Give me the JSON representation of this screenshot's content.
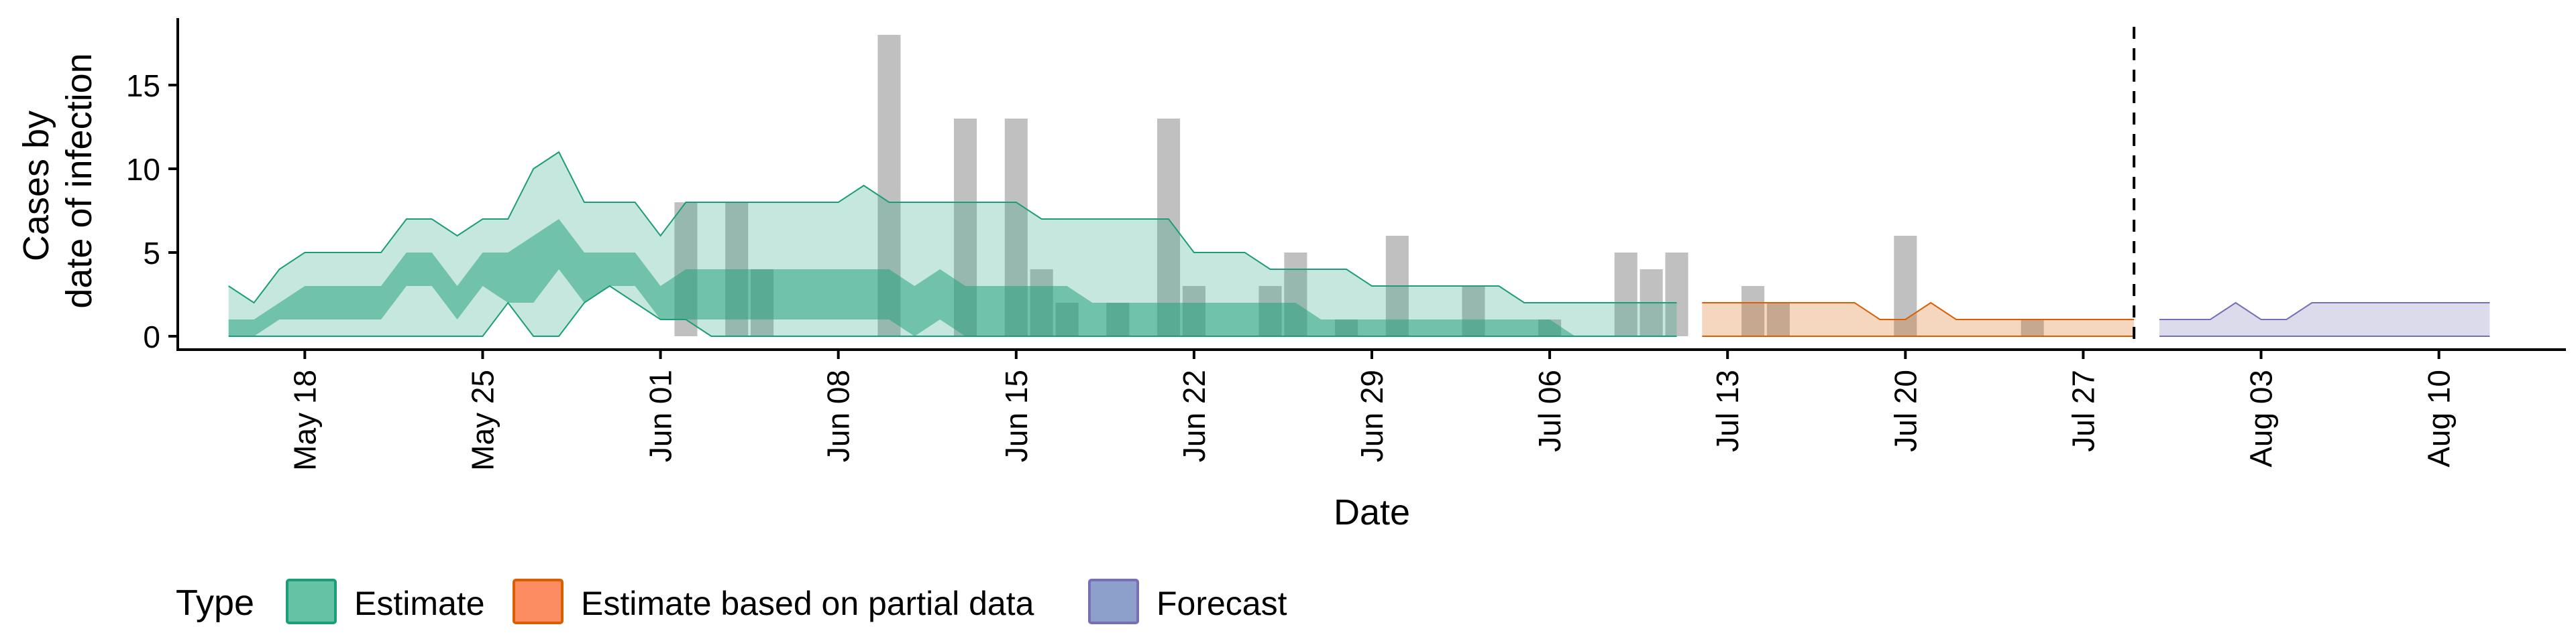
{
  "chart_data": {
    "type": "area",
    "xlabel": "Date",
    "ylabel": [
      "Cases by",
      "date of infection"
    ],
    "x_range": [
      "2020-05-13",
      "2020-08-15"
    ],
    "ylim": [
      -0.8,
      19
    ],
    "y_ticks": [
      0,
      5,
      10,
      15
    ],
    "x_ticks": [
      {
        "date": "2020-05-18",
        "label": "May 18"
      },
      {
        "date": "2020-05-25",
        "label": "May 25"
      },
      {
        "date": "2020-06-01",
        "label": "Jun 01"
      },
      {
        "date": "2020-06-08",
        "label": "Jun 08"
      },
      {
        "date": "2020-06-15",
        "label": "Jun 15"
      },
      {
        "date": "2020-06-22",
        "label": "Jun 22"
      },
      {
        "date": "2020-06-29",
        "label": "Jun 29"
      },
      {
        "date": "2020-07-06",
        "label": "Jul 06"
      },
      {
        "date": "2020-07-13",
        "label": "Jul 13"
      },
      {
        "date": "2020-07-20",
        "label": "Jul 20"
      },
      {
        "date": "2020-07-27",
        "label": "Jul 27"
      },
      {
        "date": "2020-08-03",
        "label": "Aug 03"
      },
      {
        "date": "2020-08-10",
        "label": "Aug 10"
      }
    ],
    "forecast_start": "2020-07-29",
    "legend": {
      "title": "Type",
      "position": "bottom",
      "entries": [
        "Estimate",
        "Estimate based on partial data",
        "Forecast"
      ]
    },
    "colors": {
      "estimate_fill": "#1b9e77",
      "partial_fill": "#d95f02",
      "forecast_fill": "#7570b3",
      "bar": "#9e9e9e",
      "legend_estimate": "#66c2a5",
      "legend_partial": "#fc8d62",
      "legend_forecast": "#8da0cb"
    },
    "bars": [
      {
        "date": "2020-06-02",
        "value": 8
      },
      {
        "date": "2020-06-04",
        "value": 8
      },
      {
        "date": "2020-06-05",
        "value": 4
      },
      {
        "date": "2020-06-10",
        "value": 18
      },
      {
        "date": "2020-06-13",
        "value": 13
      },
      {
        "date": "2020-06-15",
        "value": 13
      },
      {
        "date": "2020-06-16",
        "value": 4
      },
      {
        "date": "2020-06-17",
        "value": 2
      },
      {
        "date": "2020-06-19",
        "value": 2
      },
      {
        "date": "2020-06-21",
        "value": 13
      },
      {
        "date": "2020-06-22",
        "value": 3
      },
      {
        "date": "2020-06-25",
        "value": 3
      },
      {
        "date": "2020-06-26",
        "value": 5
      },
      {
        "date": "2020-06-28",
        "value": 1
      },
      {
        "date": "2020-06-30",
        "value": 6
      },
      {
        "date": "2020-07-03",
        "value": 3
      },
      {
        "date": "2020-07-06",
        "value": 1
      },
      {
        "date": "2020-07-09",
        "value": 5
      },
      {
        "date": "2020-07-10",
        "value": 4
      },
      {
        "date": "2020-07-11",
        "value": 5
      },
      {
        "date": "2020-07-14",
        "value": 3
      },
      {
        "date": "2020-07-15",
        "value": 2
      },
      {
        "date": "2020-07-20",
        "value": 6
      },
      {
        "date": "2020-07-25",
        "value": 1
      }
    ],
    "series": [
      {
        "name": "Estimate",
        "x": [
          "2020-05-15",
          "2020-05-16",
          "2020-05-17",
          "2020-05-18",
          "2020-05-19",
          "2020-05-20",
          "2020-05-21",
          "2020-05-22",
          "2020-05-23",
          "2020-05-24",
          "2020-05-25",
          "2020-05-26",
          "2020-05-27",
          "2020-05-28",
          "2020-05-29",
          "2020-05-30",
          "2020-05-31",
          "2020-06-01",
          "2020-06-02",
          "2020-06-03",
          "2020-06-04",
          "2020-06-05",
          "2020-06-06",
          "2020-06-07",
          "2020-06-08",
          "2020-06-09",
          "2020-06-10",
          "2020-06-11",
          "2020-06-12",
          "2020-06-13",
          "2020-06-14",
          "2020-06-15",
          "2020-06-16",
          "2020-06-17",
          "2020-06-18",
          "2020-06-19",
          "2020-06-20",
          "2020-06-21",
          "2020-06-22",
          "2020-06-23",
          "2020-06-24",
          "2020-06-25",
          "2020-06-26",
          "2020-06-27",
          "2020-06-28",
          "2020-06-29",
          "2020-06-30",
          "2020-07-01",
          "2020-07-02",
          "2020-07-03",
          "2020-07-04",
          "2020-07-05",
          "2020-07-06",
          "2020-07-07",
          "2020-07-08",
          "2020-07-09",
          "2020-07-10",
          "2020-07-11"
        ],
        "upper_90": [
          3,
          2,
          4,
          5,
          5,
          5,
          5,
          7,
          7,
          6,
          7,
          7,
          10,
          11,
          8,
          8,
          8,
          6,
          8,
          8,
          8,
          8,
          8,
          8,
          8,
          9,
          8,
          8,
          8,
          8,
          8,
          8,
          7,
          7,
          7,
          7,
          7,
          7,
          5,
          5,
          5,
          4,
          4,
          4,
          4,
          3,
          3,
          3,
          3,
          3,
          3,
          2,
          2,
          2,
          2,
          2,
          2,
          2
        ],
        "lower_90": [
          0,
          0,
          0,
          0,
          0,
          0,
          0,
          0,
          0,
          0,
          0,
          2,
          0,
          0,
          2,
          3,
          2,
          1,
          1,
          0,
          0,
          0,
          0,
          0,
          0,
          0,
          0,
          0,
          0,
          0,
          0,
          0,
          0,
          0,
          0,
          0,
          0,
          0,
          0,
          0,
          0,
          0,
          0,
          0,
          0,
          0,
          0,
          0,
          0,
          0,
          0,
          0,
          0,
          0,
          0,
          0,
          0,
          0
        ],
        "upper_50": [
          1,
          1,
          2,
          3,
          3,
          3,
          3,
          5,
          5,
          3,
          5,
          5,
          6,
          7,
          5,
          5,
          5,
          3,
          4,
          4,
          4,
          4,
          4,
          4,
          4,
          4,
          4,
          3,
          4,
          3,
          3,
          3,
          3,
          3,
          2,
          2,
          2,
          2,
          2,
          2,
          2,
          2,
          2,
          1,
          1,
          1,
          1,
          1,
          1,
          1,
          1,
          1,
          1,
          0,
          0,
          0,
          0,
          0
        ],
        "lower_50": [
          0,
          0,
          1,
          1,
          1,
          1,
          1,
          3,
          3,
          1,
          3,
          2,
          2,
          4,
          2,
          3,
          3,
          1,
          1,
          1,
          1,
          1,
          1,
          1,
          1,
          1,
          1,
          0,
          1,
          0,
          0,
          0,
          0,
          0,
          0,
          0,
          0,
          0,
          0,
          0,
          0,
          0,
          0,
          0,
          0,
          0,
          0,
          0,
          0,
          0,
          0,
          0,
          0,
          0,
          0,
          0,
          0,
          0
        ]
      },
      {
        "name": "Estimate based on partial data",
        "x": [
          "2020-07-12",
          "2020-07-13",
          "2020-07-14",
          "2020-07-15",
          "2020-07-16",
          "2020-07-17",
          "2020-07-18",
          "2020-07-19",
          "2020-07-20",
          "2020-07-21",
          "2020-07-22",
          "2020-07-23",
          "2020-07-24",
          "2020-07-25",
          "2020-07-26",
          "2020-07-27",
          "2020-07-28",
          "2020-07-29"
        ],
        "upper_90": [
          2,
          2,
          2,
          2,
          2,
          2,
          2,
          1,
          1,
          2,
          1,
          1,
          1,
          1,
          1,
          1,
          1,
          1
        ],
        "lower_90": [
          0,
          0,
          0,
          0,
          0,
          0,
          0,
          0,
          0,
          0,
          0,
          0,
          0,
          0,
          0,
          0,
          0,
          0
        ],
        "upper_50": [
          0,
          0,
          0,
          0,
          0,
          0,
          0,
          0,
          0,
          0,
          0,
          0,
          0,
          0,
          0,
          0,
          0,
          0
        ],
        "lower_50": [
          0,
          0,
          0,
          0,
          0,
          0,
          0,
          0,
          0,
          0,
          0,
          0,
          0,
          0,
          0,
          0,
          0,
          0
        ]
      },
      {
        "name": "Forecast",
        "x": [
          "2020-07-30",
          "2020-07-31",
          "2020-08-01",
          "2020-08-02",
          "2020-08-03",
          "2020-08-04",
          "2020-08-05",
          "2020-08-06",
          "2020-08-07",
          "2020-08-08",
          "2020-08-09",
          "2020-08-10",
          "2020-08-11",
          "2020-08-12"
        ],
        "upper_90": [
          1,
          1,
          1,
          2,
          1,
          1,
          2,
          2,
          2,
          2,
          2,
          2,
          2,
          2
        ],
        "lower_90": [
          0,
          0,
          0,
          0,
          0,
          0,
          0,
          0,
          0,
          0,
          0,
          0,
          0,
          0
        ],
        "upper_50": [
          0,
          0,
          0,
          0,
          0,
          0,
          0,
          0,
          0,
          0,
          0,
          0,
          0,
          0
        ],
        "lower_50": [
          0,
          0,
          0,
          0,
          0,
          0,
          0,
          0,
          0,
          0,
          0,
          0,
          0,
          0
        ]
      }
    ]
  }
}
